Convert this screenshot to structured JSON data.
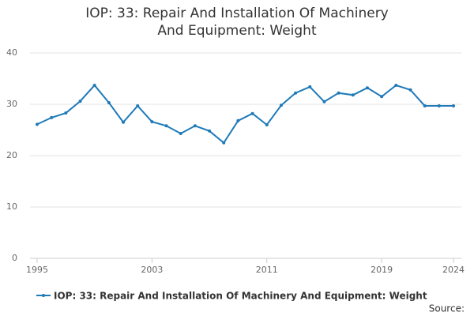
{
  "chart_data": {
    "type": "line",
    "title": "IOP: 33: Repair And Installation Of Machinery And Equipment: Weight",
    "x": [
      1995,
      1996,
      1997,
      1998,
      1999,
      2000,
      2001,
      2002,
      2003,
      2004,
      2005,
      2006,
      2007,
      2008,
      2009,
      2010,
      2011,
      2012,
      2013,
      2014,
      2015,
      2016,
      2017,
      2018,
      2019,
      2020,
      2021,
      2022,
      2023,
      2024
    ],
    "series": [
      {
        "name": "IOP: 33: Repair And Installation Of Machinery And Equipment: Weight",
        "color": "#1f7ab8",
        "values": [
          26.1,
          27.4,
          28.3,
          30.6,
          33.7,
          30.3,
          26.5,
          29.7,
          26.6,
          25.8,
          24.3,
          25.8,
          24.8,
          22.5,
          26.8,
          28.2,
          26.0,
          29.8,
          32.2,
          33.4,
          30.5,
          32.2,
          31.8,
          33.2,
          31.5,
          33.7,
          32.8,
          29.7,
          29.7,
          29.7
        ]
      }
    ],
    "xlim": [
      1995,
      2024
    ],
    "xticks": [
      1995,
      2003,
      2011,
      2019,
      2024
    ],
    "ylim": [
      0,
      40
    ],
    "yticks": [
      0,
      10,
      20,
      30,
      40
    ],
    "grid": true,
    "source": "Source:"
  }
}
